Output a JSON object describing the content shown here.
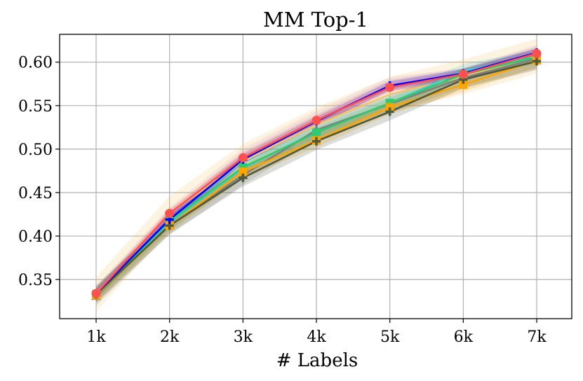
{
  "chart_data": {
    "type": "line",
    "title": "MM Top-1",
    "xlabel": "# Labels",
    "ylabel": "",
    "categories": [
      "1k",
      "2k",
      "3k",
      "4k",
      "5k",
      "6k",
      "7k"
    ],
    "ylim": [
      0.305,
      0.632
    ],
    "yticks": [
      "0.35",
      "0.40",
      "0.45",
      "0.50",
      "0.55",
      "0.60"
    ],
    "grid": true,
    "legend": "none",
    "series": [
      {
        "color": "#d8a0b8",
        "marker": "none",
        "values": [
          0.335,
          0.425,
          0.493,
          0.536,
          0.575,
          0.585,
          0.612
        ],
        "band": 0.008
      },
      {
        "color": "#9b6fc4",
        "marker": "none",
        "values": [
          0.334,
          0.422,
          0.49,
          0.533,
          0.573,
          0.586,
          0.611
        ],
        "band": 0.007
      },
      {
        "color": "#f4c26b",
        "marker": "none",
        "values": [
          0.333,
          0.426,
          0.486,
          0.528,
          0.563,
          0.583,
          0.607
        ],
        "band": 0.02
      },
      {
        "color": "#4cc9c9",
        "marker": "none",
        "values": [
          0.332,
          0.415,
          0.478,
          0.52,
          0.553,
          0.59,
          0.606
        ],
        "band": 0.008
      },
      {
        "color": "#808080",
        "marker": "triangle",
        "values": [
          0.331,
          0.413,
          0.47,
          0.522,
          0.552,
          0.582,
          0.604
        ],
        "band": 0.011
      },
      {
        "color": "#2ecc71",
        "marker": "square",
        "values": [
          0.333,
          0.417,
          0.479,
          0.519,
          0.553,
          0.586,
          0.606
        ],
        "band": 0.006
      },
      {
        "color": "#ffa500",
        "marker": "square",
        "values": [
          0.332,
          0.412,
          0.474,
          0.51,
          0.548,
          0.574,
          0.602
        ],
        "band": 0.008
      },
      {
        "color": "#4d5a3c",
        "marker": "plus",
        "values": [
          0.333,
          0.412,
          0.467,
          0.509,
          0.543,
          0.58,
          0.601
        ],
        "band": 0.01
      },
      {
        "color": "#0000ff",
        "marker": "plus",
        "values": [
          0.334,
          0.419,
          0.488,
          0.532,
          0.573,
          0.587,
          0.611
        ],
        "band": 0.005
      },
      {
        "color": "#ff5050",
        "marker": "circle",
        "values": [
          0.334,
          0.426,
          0.49,
          0.533,
          0.571,
          0.586,
          0.61
        ],
        "band": 0.005
      }
    ]
  }
}
